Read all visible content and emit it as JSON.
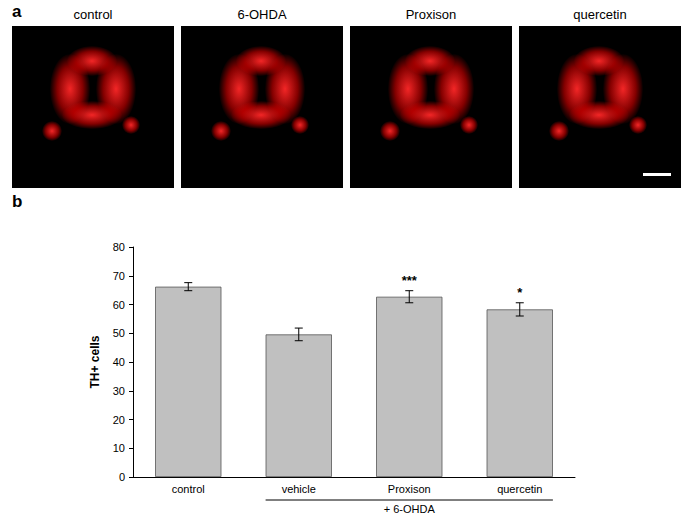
{
  "panel_labels": [
    "a",
    "b"
  ],
  "image_titles": [
    "control",
    "6-OHDA",
    "Proxison",
    "quercetin"
  ],
  "chart_data": {
    "type": "bar",
    "ylabel": "TH+ cells",
    "categories": [
      "control",
      "vehicle",
      "Proxison",
      "quercetin"
    ],
    "values": [
      66.2,
      49.6,
      62.7,
      58.3
    ],
    "errors": [
      1.4,
      2.2,
      2.1,
      2.3
    ],
    "significance": [
      null,
      null,
      "***",
      "*"
    ],
    "group": {
      "label": "+ 6-OHDA",
      "categories": [
        "vehicle",
        "Proxison",
        "quercetin"
      ]
    },
    "color": "#c0c0c0",
    "ylim": [
      0,
      80
    ],
    "yticks": [
      0,
      10,
      20,
      30,
      40,
      50,
      60,
      70,
      80
    ],
    "grid": false
  }
}
